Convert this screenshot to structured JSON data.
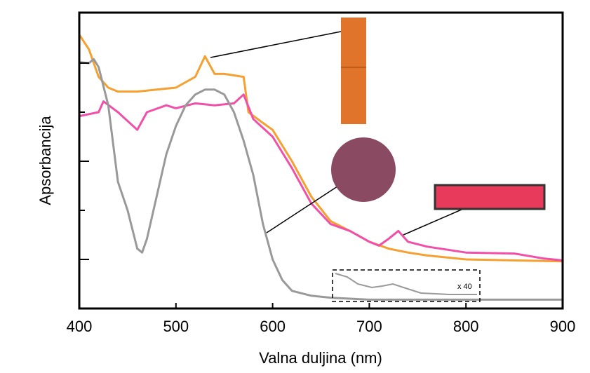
{
  "chart_data": {
    "type": "line",
    "x_label": "Valna duljina (nm)",
    "y_label": "Apsorbancija",
    "annotation": "x 40",
    "xlim": [
      400,
      900
    ],
    "xticks": [
      400,
      500,
      600,
      700,
      800,
      900
    ],
    "ylim": [
      0,
      3
    ],
    "yticks": [
      0.5,
      1,
      1.5,
      2,
      2.5
    ],
    "series": [
      {
        "color": "#f5a030",
        "x": [
          400,
          410,
          420,
          430,
          440,
          460,
          480,
          500,
          520,
          530,
          540,
          550,
          570,
          575,
          590,
          600,
          620,
          640,
          660,
          680,
          700,
          720,
          740,
          760,
          800,
          850,
          900
        ],
        "values": [
          2.79,
          2.64,
          2.36,
          2.25,
          2.21,
          2.21,
          2.23,
          2.25,
          2.36,
          2.57,
          2.39,
          2.39,
          2.36,
          2.0,
          1.89,
          1.82,
          1.5,
          1.14,
          0.89,
          0.79,
          0.68,
          0.61,
          0.57,
          0.54,
          0.5,
          0.49,
          0.48
        ]
      },
      {
        "color": "#f050a8",
        "x": [
          400,
          420,
          425,
          440,
          460,
          470,
          490,
          500,
          520,
          540,
          560,
          570,
          580,
          600,
          620,
          640,
          660,
          680,
          700,
          710,
          720,
          730,
          740,
          760,
          800,
          850,
          880,
          900
        ],
        "values": [
          1.96,
          2.0,
          2.11,
          2.0,
          1.82,
          2.0,
          2.07,
          2.04,
          2.09,
          2.07,
          2.09,
          2.18,
          1.93,
          1.75,
          1.43,
          1.07,
          0.86,
          0.79,
          0.68,
          0.64,
          0.71,
          0.79,
          0.68,
          0.63,
          0.57,
          0.56,
          0.51,
          0.49
        ]
      },
      {
        "color": "#999999",
        "x": [
          400,
          410,
          415,
          420,
          430,
          440,
          450,
          460,
          465,
          470,
          480,
          490,
          500,
          510,
          520,
          530,
          540,
          550,
          560,
          570,
          580,
          590,
          600,
          610,
          620,
          640,
          660,
          700,
          800,
          900
        ],
        "values": [
          2.51,
          2.5,
          2.54,
          2.46,
          2.07,
          1.29,
          1.0,
          0.61,
          0.57,
          0.71,
          1.14,
          1.57,
          1.86,
          2.07,
          2.18,
          2.23,
          2.23,
          2.18,
          2.0,
          1.71,
          1.36,
          0.86,
          0.5,
          0.29,
          0.18,
          0.13,
          0.11,
          0.09,
          0.09,
          0.09
        ]
      }
    ]
  }
}
